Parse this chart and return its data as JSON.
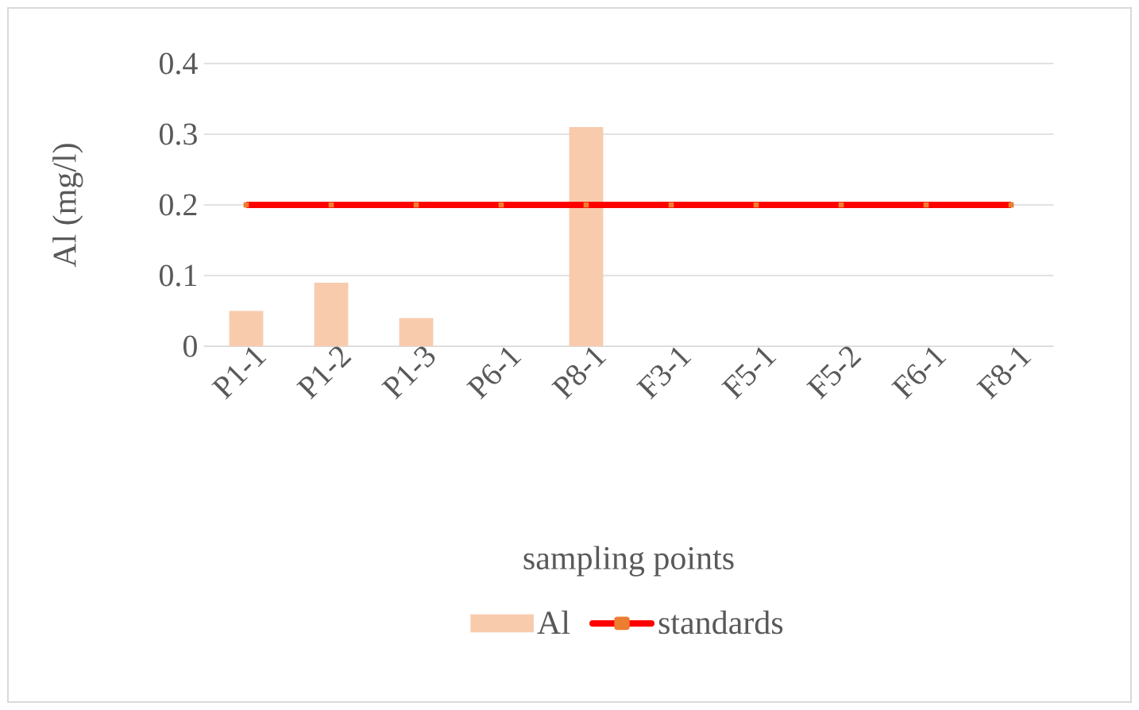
{
  "chart_data": {
    "type": "bar",
    "xlabel": "sampling points",
    "ylabel": "Al (mg/l)",
    "categories": [
      "P1-1",
      "P1-2",
      "P1-3",
      "P6-1",
      "P8-1",
      "F3-1",
      "F5-1",
      "F5-2",
      "F6-1",
      "F8-1"
    ],
    "series": [
      {
        "name": "Al",
        "color": "#f8cbad",
        "values": [
          0.05,
          0.09,
          0.04,
          0,
          0.31,
          0,
          0,
          0,
          0,
          0
        ]
      },
      {
        "name": "standards",
        "type": "line",
        "color": "#ff0000",
        "marker": "square",
        "values": [
          0.2,
          0.2,
          0.2,
          0.2,
          0.2,
          0.2,
          0.2,
          0.2,
          0.2,
          0.2
        ]
      }
    ],
    "ylim": [
      0,
      0.4
    ],
    "yticks": [
      0,
      0.1,
      0.2,
      0.3,
      0.4
    ],
    "grid": "y",
    "legend": "bottom"
  }
}
